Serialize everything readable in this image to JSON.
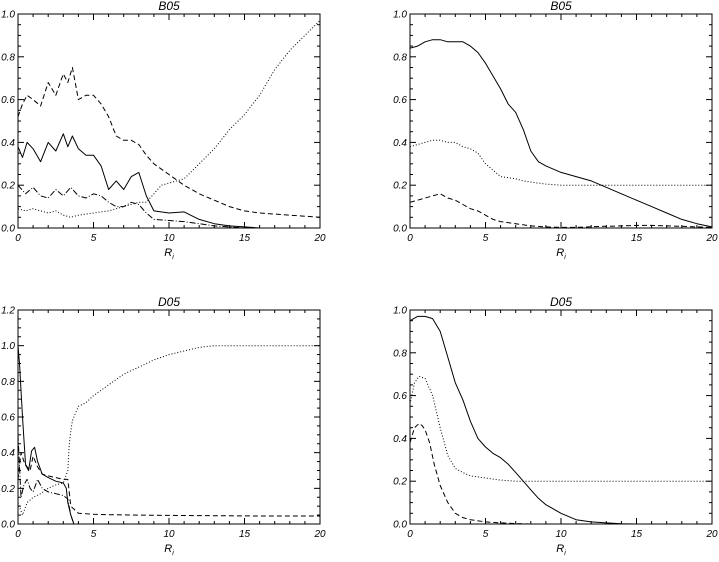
{
  "chart_data": [
    {
      "type": "line",
      "title": "B05",
      "xlabel": "R",
      "xlabel_sub": "i",
      "xlim": [
        0,
        20
      ],
      "ylim": [
        0,
        1.0
      ],
      "xticks": [
        "0",
        "5",
        "10",
        "15",
        "20"
      ],
      "yticks": [
        "0.0",
        "0.2",
        "0.4",
        "0.6",
        "0.8",
        "1.0"
      ],
      "series": [
        {
          "style": "solid",
          "x": [
            0,
            0.3,
            0.6,
            1,
            1.5,
            2,
            2.5,
            3,
            3.3,
            3.6,
            4,
            4.5,
            5,
            5.5,
            6,
            6.5,
            7,
            7.5,
            8,
            8.5,
            9,
            10,
            11,
            12,
            13,
            14,
            15,
            16,
            17,
            18,
            19,
            20
          ],
          "y": [
            0.38,
            0.33,
            0.4,
            0.37,
            0.31,
            0.4,
            0.36,
            0.44,
            0.38,
            0.43,
            0.37,
            0.34,
            0.34,
            0.29,
            0.18,
            0.22,
            0.18,
            0.24,
            0.26,
            0.15,
            0.08,
            0.07,
            0.075,
            0.04,
            0.02,
            0.01,
            0.005,
            0,
            0,
            0,
            0,
            0
          ]
        },
        {
          "style": "dashed",
          "x": [
            0,
            0.3,
            0.6,
            1,
            1.5,
            2,
            2.5,
            3,
            3.3,
            3.6,
            4,
            4.5,
            5,
            5.5,
            6,
            6.5,
            7,
            7.5,
            8,
            8.5,
            9,
            10,
            11,
            12,
            13,
            14,
            15,
            16,
            17,
            18,
            19,
            20
          ],
          "y": [
            0.52,
            0.58,
            0.62,
            0.6,
            0.57,
            0.68,
            0.62,
            0.72,
            0.68,
            0.75,
            0.6,
            0.62,
            0.62,
            0.58,
            0.52,
            0.43,
            0.41,
            0.41,
            0.39,
            0.34,
            0.3,
            0.25,
            0.2,
            0.16,
            0.13,
            0.1,
            0.08,
            0.07,
            0.065,
            0.06,
            0.055,
            0.05
          ]
        },
        {
          "style": "dashdot",
          "x": [
            0,
            0.5,
            1,
            1.5,
            2,
            2.5,
            3,
            3.5,
            4,
            4.5,
            5,
            5.5,
            6,
            6.5,
            7,
            7.5,
            8,
            8.5,
            9,
            10,
            11,
            12,
            13,
            14,
            15,
            16,
            17,
            18,
            19,
            20
          ],
          "y": [
            0.2,
            0.16,
            0.19,
            0.15,
            0.14,
            0.18,
            0.15,
            0.19,
            0.15,
            0.14,
            0.16,
            0.15,
            0.12,
            0.1,
            0.1,
            0.12,
            0.11,
            0.07,
            0.04,
            0.035,
            0.03,
            0.02,
            0.01,
            0.005,
            0,
            0,
            0,
            0,
            0,
            0
          ]
        },
        {
          "style": "dotted",
          "x": [
            0,
            0.5,
            1,
            1.5,
            2,
            2.5,
            3,
            3.5,
            4,
            5,
            6,
            7,
            8,
            8.5,
            9,
            9.5,
            10,
            10.5,
            11,
            12,
            13,
            14,
            15,
            16,
            17,
            18,
            19,
            20
          ],
          "y": [
            0.09,
            0.08,
            0.09,
            0.08,
            0.07,
            0.08,
            0.06,
            0.05,
            0.06,
            0.07,
            0.08,
            0.1,
            0.12,
            0.12,
            0.16,
            0.2,
            0.21,
            0.22,
            0.23,
            0.3,
            0.37,
            0.46,
            0.53,
            0.62,
            0.74,
            0.83,
            0.9,
            0.97
          ]
        }
      ]
    },
    {
      "type": "line",
      "title": "B05",
      "xlabel": "R",
      "xlabel_sub": "i",
      "xlim": [
        0,
        20
      ],
      "ylim": [
        0,
        1.0
      ],
      "xticks": [
        "0",
        "5",
        "10",
        "15",
        "20"
      ],
      "yticks": [
        "0.0",
        "0.2",
        "0.4",
        "0.6",
        "0.8",
        "1.0"
      ],
      "series": [
        {
          "style": "solid",
          "x": [
            0,
            0.5,
            1,
            1.5,
            2,
            2.5,
            3,
            3.5,
            4,
            4.5,
            5,
            5.5,
            6,
            6.5,
            7,
            7.5,
            8,
            8.5,
            9,
            10,
            11,
            12,
            13,
            14,
            15,
            16,
            17,
            18,
            19,
            20
          ],
          "y": [
            0.84,
            0.85,
            0.87,
            0.88,
            0.88,
            0.87,
            0.87,
            0.87,
            0.85,
            0.82,
            0.77,
            0.71,
            0.65,
            0.58,
            0.54,
            0.46,
            0.36,
            0.31,
            0.29,
            0.26,
            0.24,
            0.22,
            0.19,
            0.16,
            0.13,
            0.1,
            0.07,
            0.04,
            0.02,
            0.005
          ]
        },
        {
          "style": "dotted",
          "x": [
            0,
            0.5,
            1,
            1.5,
            2,
            2.5,
            3,
            3.5,
            4,
            4.5,
            5,
            5.5,
            6,
            6.5,
            7,
            7.5,
            8,
            8.5,
            9,
            10,
            11,
            12,
            13,
            14,
            15,
            16,
            17,
            18,
            19,
            20
          ],
          "y": [
            0.38,
            0.39,
            0.4,
            0.41,
            0.41,
            0.4,
            0.4,
            0.38,
            0.37,
            0.35,
            0.3,
            0.27,
            0.24,
            0.235,
            0.23,
            0.22,
            0.215,
            0.21,
            0.205,
            0.2,
            0.2,
            0.2,
            0.2,
            0.2,
            0.2,
            0.2,
            0.2,
            0.2,
            0.2,
            0.2
          ]
        },
        {
          "style": "dashed",
          "x": [
            0,
            0.5,
            1,
            1.5,
            2,
            2.5,
            3,
            3.5,
            4,
            4.5,
            5,
            5.5,
            6,
            7,
            8,
            9,
            10,
            11,
            12,
            13,
            14,
            15,
            16,
            17,
            18,
            19,
            20
          ],
          "y": [
            0.12,
            0.13,
            0.14,
            0.15,
            0.16,
            0.14,
            0.13,
            0.11,
            0.09,
            0.08,
            0.06,
            0.04,
            0.03,
            0.02,
            0.01,
            0.005,
            0.003,
            0.003,
            0.006,
            0.008,
            0.01,
            0.012,
            0.012,
            0.01,
            0.008,
            0.005,
            0.003
          ]
        }
      ]
    },
    {
      "type": "line",
      "title": "D05",
      "xlabel": "R",
      "xlabel_sub": "i",
      "xlim": [
        0,
        20
      ],
      "ylim": [
        0,
        1.2
      ],
      "xticks": [
        "0",
        "5",
        "10",
        "15",
        "20"
      ],
      "yticks": [
        "0.0",
        "0.2",
        "0.4",
        "0.6",
        "0.8",
        "1.0",
        "1.2"
      ],
      "series": [
        {
          "style": "solid",
          "x": [
            0,
            0.1,
            0.3,
            0.5,
            0.7,
            0.9,
            1.1,
            1.3,
            1.6,
            2,
            2.5,
            3,
            3.2,
            3.3,
            3.5,
            3.7
          ],
          "y": [
            1.0,
            0.9,
            0.6,
            0.33,
            0.3,
            0.41,
            0.43,
            0.35,
            0.28,
            0.26,
            0.24,
            0.23,
            0.2,
            0.12,
            0.05,
            0
          ]
        },
        {
          "style": "dashed",
          "x": [
            0,
            0.2,
            0.4,
            0.6,
            0.8,
            1,
            1.3,
            1.6,
            2,
            2.5,
            3,
            3.3,
            3.5,
            4,
            5,
            6,
            8,
            10,
            12,
            14,
            16,
            18,
            20
          ],
          "y": [
            0.25,
            0.4,
            0.35,
            0.32,
            0.3,
            0.38,
            0.32,
            0.28,
            0.27,
            0.26,
            0.25,
            0.25,
            0.1,
            0.06,
            0.055,
            0.052,
            0.05,
            0.048,
            0.047,
            0.046,
            0.045,
            0.045,
            0.045
          ]
        },
        {
          "style": "dashdot",
          "x": [
            0,
            0.2,
            0.4,
            0.6,
            0.8,
            1,
            1.3,
            1.6,
            2,
            2.5,
            3,
            3.3,
            3.5,
            3.7
          ],
          "y": [
            0.5,
            0.15,
            0.22,
            0.25,
            0.2,
            0.18,
            0.25,
            0.2,
            0.18,
            0.17,
            0.16,
            0.14,
            0.05,
            0
          ]
        },
        {
          "style": "dotted",
          "x": [
            0,
            0.3,
            0.6,
            1,
            1.5,
            2,
            2.5,
            3,
            3.3,
            3.4,
            3.5,
            3.6,
            3.8,
            4,
            4.5,
            5,
            6,
            7,
            8,
            9,
            10,
            11,
            12,
            13,
            14,
            15,
            16,
            17,
            18,
            19,
            20
          ],
          "y": [
            0.12,
            0.05,
            0.12,
            0.15,
            0.17,
            0.2,
            0.22,
            0.23,
            0.3,
            0.45,
            0.52,
            0.58,
            0.62,
            0.66,
            0.68,
            0.72,
            0.78,
            0.84,
            0.88,
            0.92,
            0.95,
            0.97,
            0.99,
            1.0,
            1.0,
            1.0,
            1.0,
            1.0,
            1.0,
            1.0,
            1.0
          ]
        }
      ]
    },
    {
      "type": "line",
      "title": "D05",
      "xlabel": "R",
      "xlabel_sub": "i",
      "xlim": [
        0,
        20
      ],
      "ylim": [
        0,
        1.0
      ],
      "xticks": [
        "0",
        "5",
        "10",
        "15",
        "20"
      ],
      "yticks": [
        "0.0",
        "0.2",
        "0.4",
        "0.6",
        "0.8",
        "1.0"
      ],
      "series": [
        {
          "style": "solid",
          "x": [
            0,
            0.5,
            1,
            1.5,
            2,
            2.5,
            3,
            3.5,
            4,
            4.5,
            5,
            5.5,
            6,
            6.5,
            7,
            7.5,
            8,
            8.5,
            9,
            10,
            11,
            12,
            13,
            14,
            15
          ],
          "y": [
            0.95,
            0.97,
            0.97,
            0.96,
            0.9,
            0.78,
            0.66,
            0.58,
            0.48,
            0.4,
            0.36,
            0.33,
            0.31,
            0.28,
            0.24,
            0.2,
            0.16,
            0.12,
            0.09,
            0.05,
            0.02,
            0.01,
            0.005,
            0.001,
            0
          ]
        },
        {
          "style": "dotted",
          "x": [
            0,
            0.3,
            0.6,
            1,
            1.5,
            2,
            2.5,
            3,
            3.5,
            4,
            4.5,
            5,
            5.5,
            6,
            7,
            8,
            9,
            10,
            12,
            14,
            16,
            18,
            20
          ],
          "y": [
            0.56,
            0.66,
            0.69,
            0.68,
            0.6,
            0.45,
            0.32,
            0.26,
            0.24,
            0.225,
            0.22,
            0.215,
            0.21,
            0.205,
            0.2,
            0.2,
            0.2,
            0.2,
            0.2,
            0.2,
            0.2,
            0.2,
            0.2
          ]
        },
        {
          "style": "dashed",
          "x": [
            0,
            0.3,
            0.6,
            0.8,
            1,
            1.3,
            1.6,
            2,
            2.5,
            3,
            3.5,
            4,
            5,
            6,
            7,
            8,
            10,
            12,
            14,
            16,
            18,
            20
          ],
          "y": [
            0.38,
            0.45,
            0.47,
            0.46,
            0.44,
            0.38,
            0.28,
            0.18,
            0.1,
            0.05,
            0.03,
            0.02,
            0.01,
            0.005,
            0.002,
            0,
            0,
            0,
            0,
            0,
            0,
            0
          ]
        }
      ]
    }
  ]
}
